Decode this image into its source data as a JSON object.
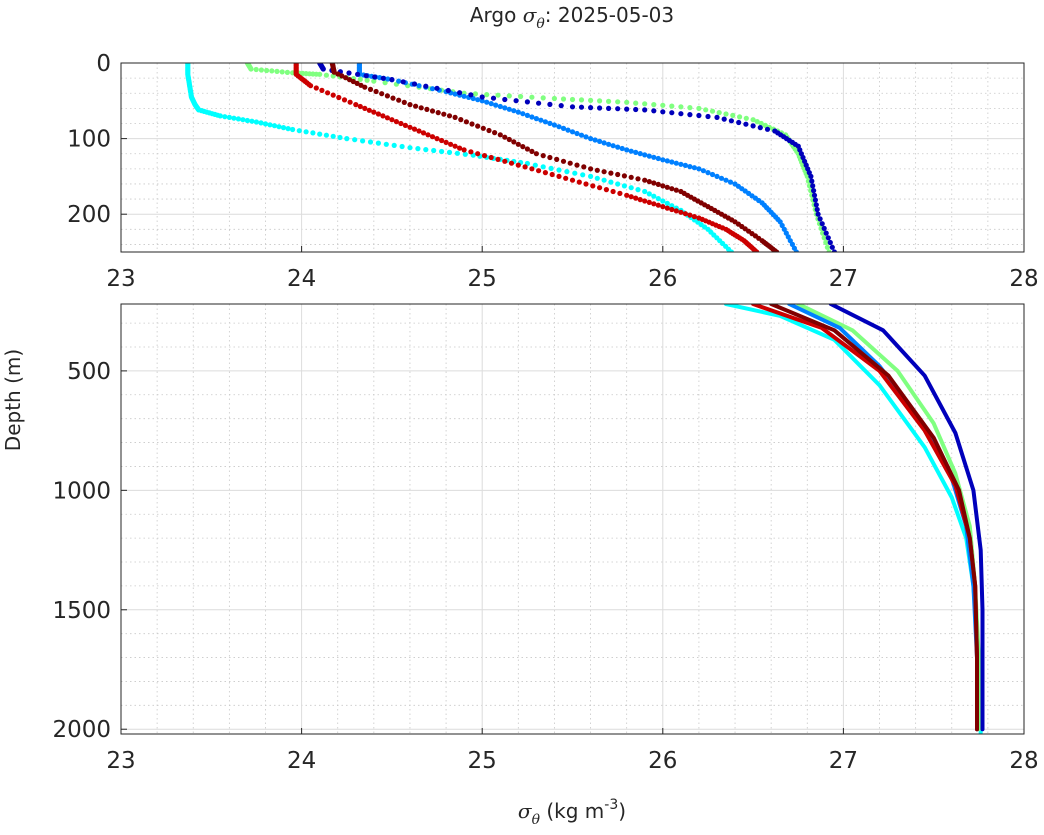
{
  "figure": {
    "title_prefix": "Argo ",
    "title_symbol": "σ",
    "title_symbol_sub": "θ",
    "title_suffix": ": 2025-05-03",
    "xlabel_symbol": "σ",
    "xlabel_symbol_sub": "θ",
    "xlabel_units": " (kg m",
    "xlabel_units_sup": "-3",
    "xlabel_units_end": ")",
    "ylabel": "Depth (m)"
  },
  "chart_data": [
    {
      "type": "scatter",
      "panel": "top",
      "xlim": [
        23,
        28
      ],
      "ylim": [
        0,
        250
      ],
      "y_reversed": true,
      "xticks": [
        23,
        24,
        25,
        26,
        27,
        28
      ],
      "xtick_labels": [
        "23",
        "24",
        "25",
        "26",
        "27",
        "28"
      ],
      "yticks": [
        0,
        100,
        200
      ],
      "ytick_labels": [
        "0",
        "100",
        "200"
      ],
      "grid": true,
      "minor_grid": true,
      "series": [
        {
          "color": "#00ffff",
          "points": [
            [
              23.37,
              0
            ],
            [
              23.37,
              15
            ],
            [
              23.38,
              30
            ],
            [
              23.39,
              45
            ],
            [
              23.41,
              55
            ],
            [
              23.43,
              62
            ],
            [
              23.55,
              70
            ],
            [
              23.75,
              78
            ],
            [
              23.95,
              88
            ],
            [
              24.25,
              100
            ],
            [
              24.6,
              112
            ],
            [
              24.95,
              122
            ],
            [
              25.25,
              133
            ],
            [
              25.6,
              150
            ],
            [
              25.9,
              170
            ],
            [
              26.1,
              195
            ],
            [
              26.25,
              220
            ],
            [
              26.38,
              250
            ]
          ]
        },
        {
          "color": "#80ff80",
          "points": [
            [
              23.7,
              0
            ],
            [
              23.72,
              8
            ],
            [
              23.95,
              13
            ],
            [
              24.1,
              15
            ],
            [
              24.4,
              24
            ],
            [
              24.9,
              40
            ],
            [
              25.4,
              47
            ],
            [
              25.8,
              52
            ],
            [
              26.2,
              60
            ],
            [
              26.5,
              75
            ],
            [
              26.68,
              95
            ],
            [
              26.75,
              120
            ],
            [
              26.8,
              150
            ],
            [
              26.85,
              200
            ],
            [
              26.92,
              250
            ]
          ]
        },
        {
          "color": "#0080ff",
          "points": [
            [
              24.32,
              0
            ],
            [
              24.32,
              15
            ],
            [
              24.5,
              22
            ],
            [
              24.8,
              38
            ],
            [
              25.0,
              50
            ],
            [
              25.2,
              65
            ],
            [
              25.4,
              82
            ],
            [
              25.6,
              100
            ],
            [
              25.8,
              115
            ],
            [
              26.0,
              128
            ],
            [
              26.2,
              140
            ],
            [
              26.4,
              160
            ],
            [
              26.55,
              185
            ],
            [
              26.65,
              210
            ],
            [
              26.74,
              250
            ]
          ]
        },
        {
          "color": "#0000bb",
          "points": [
            [
              24.1,
              0
            ],
            [
              24.12,
              8
            ],
            [
              24.5,
              22
            ],
            [
              25.0,
              45
            ],
            [
              25.5,
              58
            ],
            [
              25.9,
              62
            ],
            [
              26.3,
              72
            ],
            [
              26.62,
              90
            ],
            [
              26.75,
              110
            ],
            [
              26.82,
              150
            ],
            [
              26.86,
              200
            ],
            [
              26.95,
              250
            ]
          ]
        },
        {
          "color": "#cc0000",
          "points": [
            [
              23.97,
              0
            ],
            [
              23.97,
              15
            ],
            [
              24.05,
              30
            ],
            [
              24.3,
              55
            ],
            [
              24.5,
              75
            ],
            [
              24.7,
              95
            ],
            [
              24.9,
              115
            ],
            [
              25.2,
              135
            ],
            [
              25.5,
              155
            ],
            [
              25.8,
              175
            ],
            [
              26.0,
              190
            ],
            [
              26.2,
              205
            ],
            [
              26.35,
              220
            ],
            [
              26.45,
              235
            ],
            [
              26.52,
              250
            ]
          ]
        },
        {
          "color": "#800000",
          "points": [
            [
              24.17,
              0
            ],
            [
              24.18,
              12
            ],
            [
              24.35,
              32
            ],
            [
              24.6,
              55
            ],
            [
              24.85,
              72
            ],
            [
              25.1,
              95
            ],
            [
              25.3,
              120
            ],
            [
              25.6,
              140
            ],
            [
              25.9,
              155
            ],
            [
              26.1,
              170
            ],
            [
              26.25,
              190
            ],
            [
              26.4,
              210
            ],
            [
              26.55,
              235
            ],
            [
              26.63,
              250
            ]
          ]
        }
      ]
    },
    {
      "type": "line",
      "panel": "bottom",
      "xlim": [
        23,
        28
      ],
      "ylim": [
        220,
        2020
      ],
      "y_reversed": true,
      "xticks": [
        23,
        24,
        25,
        26,
        27,
        28
      ],
      "xtick_labels": [
        "23",
        "24",
        "25",
        "26",
        "27",
        "28"
      ],
      "yticks": [
        500,
        1000,
        1500,
        2000
      ],
      "ytick_labels": [
        "500",
        "1000",
        "1500",
        "2000"
      ],
      "grid": true,
      "minor_grid": true,
      "series": [
        {
          "color": "#00ffff",
          "points": [
            [
              26.35,
              220
            ],
            [
              26.65,
              270
            ],
            [
              26.95,
              370
            ],
            [
              27.2,
              560
            ],
            [
              27.45,
              820
            ],
            [
              27.6,
              1030
            ],
            [
              27.68,
              1200
            ],
            [
              27.72,
              1400
            ],
            [
              27.75,
              1700
            ],
            [
              27.76,
              2020
            ]
          ]
        },
        {
          "color": "#80ff80",
          "points": [
            [
              26.75,
              220
            ],
            [
              27.05,
              330
            ],
            [
              27.3,
              500
            ],
            [
              27.5,
              720
            ],
            [
              27.62,
              930
            ],
            [
              27.7,
              1150
            ],
            [
              27.73,
              1400
            ],
            [
              27.75,
              1700
            ],
            [
              27.75,
              2000
            ]
          ]
        },
        {
          "color": "#0080ff",
          "points": [
            [
              26.7,
              220
            ],
            [
              26.98,
              320
            ],
            [
              27.2,
              480
            ],
            [
              27.42,
              700
            ],
            [
              27.6,
              950
            ],
            [
              27.68,
              1150
            ],
            [
              27.72,
              1400
            ],
            [
              27.74,
              1700
            ],
            [
              27.74,
              2000
            ]
          ]
        },
        {
          "color": "#cc0000",
          "points": [
            [
              26.5,
              220
            ],
            [
              26.88,
              320
            ],
            [
              27.2,
              500
            ],
            [
              27.45,
              750
            ],
            [
              27.62,
              980
            ],
            [
              27.7,
              1200
            ],
            [
              27.73,
              1400
            ],
            [
              27.74,
              1700
            ],
            [
              27.74,
              2000
            ]
          ]
        },
        {
          "color": "#800000",
          "points": [
            [
              26.6,
              220
            ],
            [
              26.95,
              330
            ],
            [
              27.25,
              520
            ],
            [
              27.5,
              780
            ],
            [
              27.64,
              1000
            ],
            [
              27.7,
              1200
            ],
            [
              27.73,
              1400
            ],
            [
              27.74,
              1700
            ],
            [
              27.74,
              2000
            ]
          ]
        },
        {
          "color": "#0000bb",
          "points": [
            [
              26.93,
              220
            ],
            [
              27.22,
              330
            ],
            [
              27.45,
              520
            ],
            [
              27.62,
              760
            ],
            [
              27.72,
              1000
            ],
            [
              27.76,
              1250
            ],
            [
              27.77,
              1500
            ],
            [
              27.77,
              1800
            ],
            [
              27.77,
              2000
            ]
          ]
        }
      ]
    }
  ]
}
